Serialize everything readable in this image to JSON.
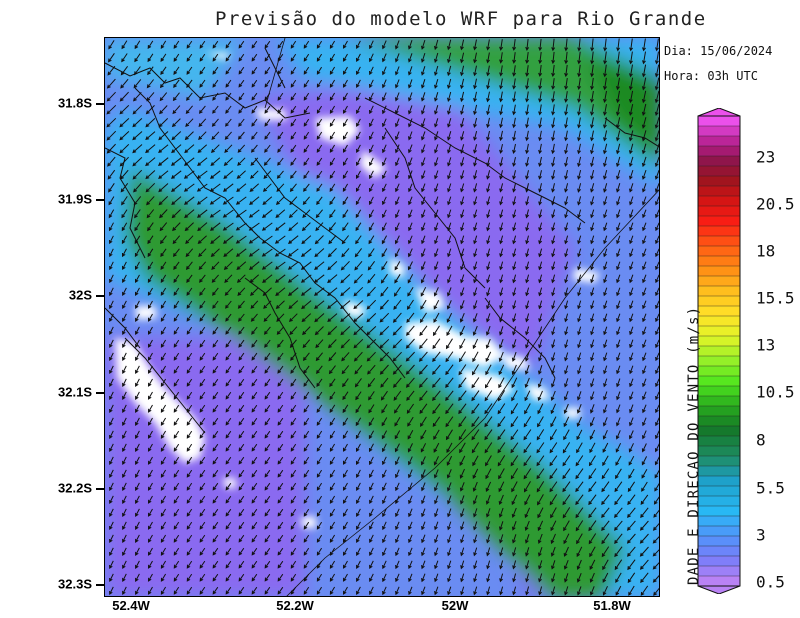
{
  "title": "Previsão do modelo WRF para Rio Grande",
  "info": {
    "date": "Dia: 15/06/2024",
    "time": "Hora: 03h UTC"
  },
  "axes": {
    "y_labels": [
      "31.8S",
      "31.9S",
      "32S",
      "32.1S",
      "32.2S",
      "32.3S"
    ],
    "x_labels": [
      "52.4W",
      "52.2W",
      "52W",
      "51.8W"
    ]
  },
  "colorbar": {
    "title": "DADE E DIRECAO DO VENTO (m/s)",
    "labels": [
      "23",
      "20.5",
      "18",
      "15.5",
      "13",
      "10.5",
      "8",
      "5.5",
      "3",
      "0.5"
    ]
  },
  "chart_data": {
    "type": "heatmap",
    "title": "Previsão do modelo WRF para Rio Grande",
    "variable": "wind speed and direction",
    "units": "m/s",
    "lat_range": [
      31.7,
      32.3
    ],
    "lon_range": [
      52.45,
      51.75
    ],
    "lat_ticks": [
      31.8,
      31.9,
      32.0,
      32.1,
      32.2,
      32.3
    ],
    "lon_ticks": [
      52.4,
      52.2,
      52.0,
      51.8
    ],
    "colorbar_ticks": [
      0.5,
      3,
      5.5,
      8,
      10.5,
      13,
      15.5,
      18,
      20.5,
      23
    ],
    "colorbar_min": 0.5,
    "colorbar_max": 24,
    "dominant_wind_direction": "southwest",
    "max_speed_band": [
      5.5,
      9
    ],
    "colors": {
      "low": "#8a6cf0",
      "mid": "#36b0f0",
      "high": "#2e9a2e",
      "missing": "#ffffff"
    }
  }
}
